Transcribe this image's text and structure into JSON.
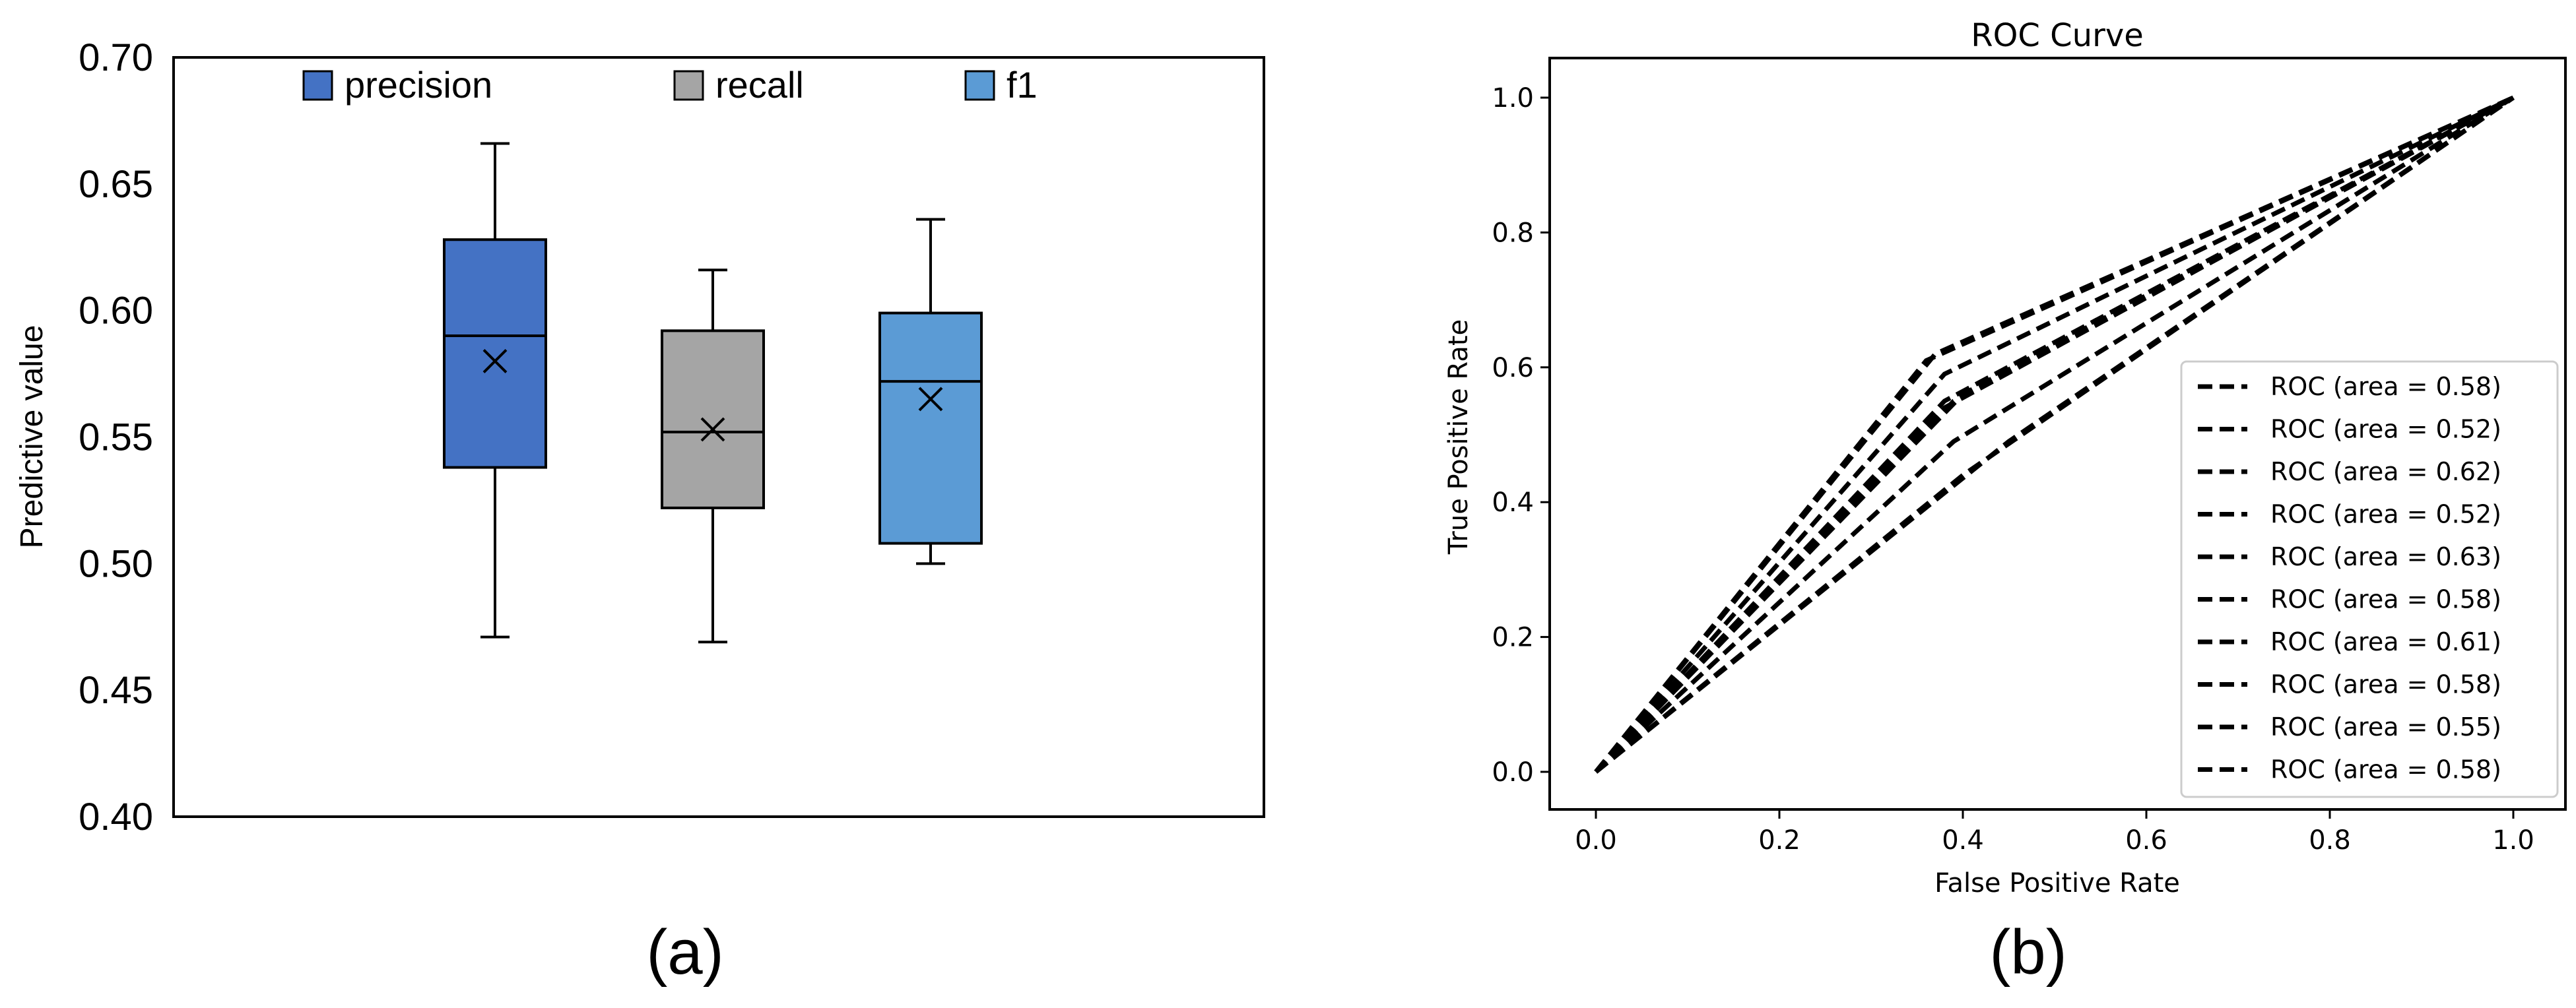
{
  "panel_labels": {
    "a": "(a)",
    "b": "(b)"
  },
  "chart_data": [
    {
      "type": "box",
      "title": "",
      "xlabel": "",
      "ylabel": "Predictive value",
      "ylim": [
        0.4,
        0.7
      ],
      "yticks": [
        "0.40",
        "0.45",
        "0.50",
        "0.55",
        "0.60",
        "0.65",
        "0.70"
      ],
      "legend_position": "top",
      "series": [
        {
          "name": "precision",
          "color": "#4472C4",
          "whisker_low": 0.471,
          "q1": 0.538,
          "median": 0.59,
          "q3": 0.628,
          "whisker_high": 0.666,
          "mean": 0.58
        },
        {
          "name": "recall",
          "color": "#A5A5A5",
          "whisker_low": 0.469,
          "q1": 0.522,
          "median": 0.552,
          "q3": 0.592,
          "whisker_high": 0.616,
          "mean": 0.553
        },
        {
          "name": "f1",
          "color": "#5B9BD5",
          "whisker_low": 0.5,
          "q1": 0.508,
          "median": 0.572,
          "q3": 0.599,
          "whisker_high": 0.636,
          "mean": 0.565
        }
      ]
    },
    {
      "type": "line",
      "title": "ROC Curve",
      "xlabel": "False Positive Rate",
      "ylabel": "True Positive Rate",
      "xlim": [
        0,
        1
      ],
      "ylim": [
        0,
        1
      ],
      "xticks": [
        "0.0",
        "0.2",
        "0.4",
        "0.6",
        "0.8",
        "1.0"
      ],
      "yticks": [
        "0.0",
        "0.2",
        "0.4",
        "0.6",
        "0.8",
        "1.0"
      ],
      "legend_position": "lower right",
      "line_color": "#000000",
      "series": [
        {
          "name": "ROC (area = 0.58)",
          "x": [
            0,
            0.38,
            1
          ],
          "y": [
            0,
            0.54,
            1
          ]
        },
        {
          "name": "ROC (area = 0.52)",
          "x": [
            0,
            0.4,
            1
          ],
          "y": [
            0,
            0.44,
            1
          ]
        },
        {
          "name": "ROC (area = 0.62)",
          "x": [
            0,
            0.36,
            1
          ],
          "y": [
            0,
            0.61,
            1
          ]
        },
        {
          "name": "ROC (area = 0.52)",
          "x": [
            0,
            0.45,
            1
          ],
          "y": [
            0,
            0.49,
            1
          ]
        },
        {
          "name": "ROC (area = 0.63)",
          "x": [
            0,
            0.37,
            1
          ],
          "y": [
            0,
            0.62,
            1
          ]
        },
        {
          "name": "ROC (area = 0.58)",
          "x": [
            0,
            0.39,
            1
          ],
          "y": [
            0,
            0.55,
            1
          ]
        },
        {
          "name": "ROC (area = 0.61)",
          "x": [
            0,
            0.38,
            1
          ],
          "y": [
            0,
            0.59,
            1
          ]
        },
        {
          "name": "ROC (area = 0.58)",
          "x": [
            0,
            0.4,
            1
          ],
          "y": [
            0,
            0.56,
            1
          ]
        },
        {
          "name": "ROC (area = 0.55)",
          "x": [
            0,
            0.39,
            1
          ],
          "y": [
            0,
            0.49,
            1
          ]
        },
        {
          "name": "ROC (area = 0.58)",
          "x": [
            0,
            0.38,
            1
          ],
          "y": [
            0,
            0.55,
            1
          ]
        }
      ]
    }
  ]
}
